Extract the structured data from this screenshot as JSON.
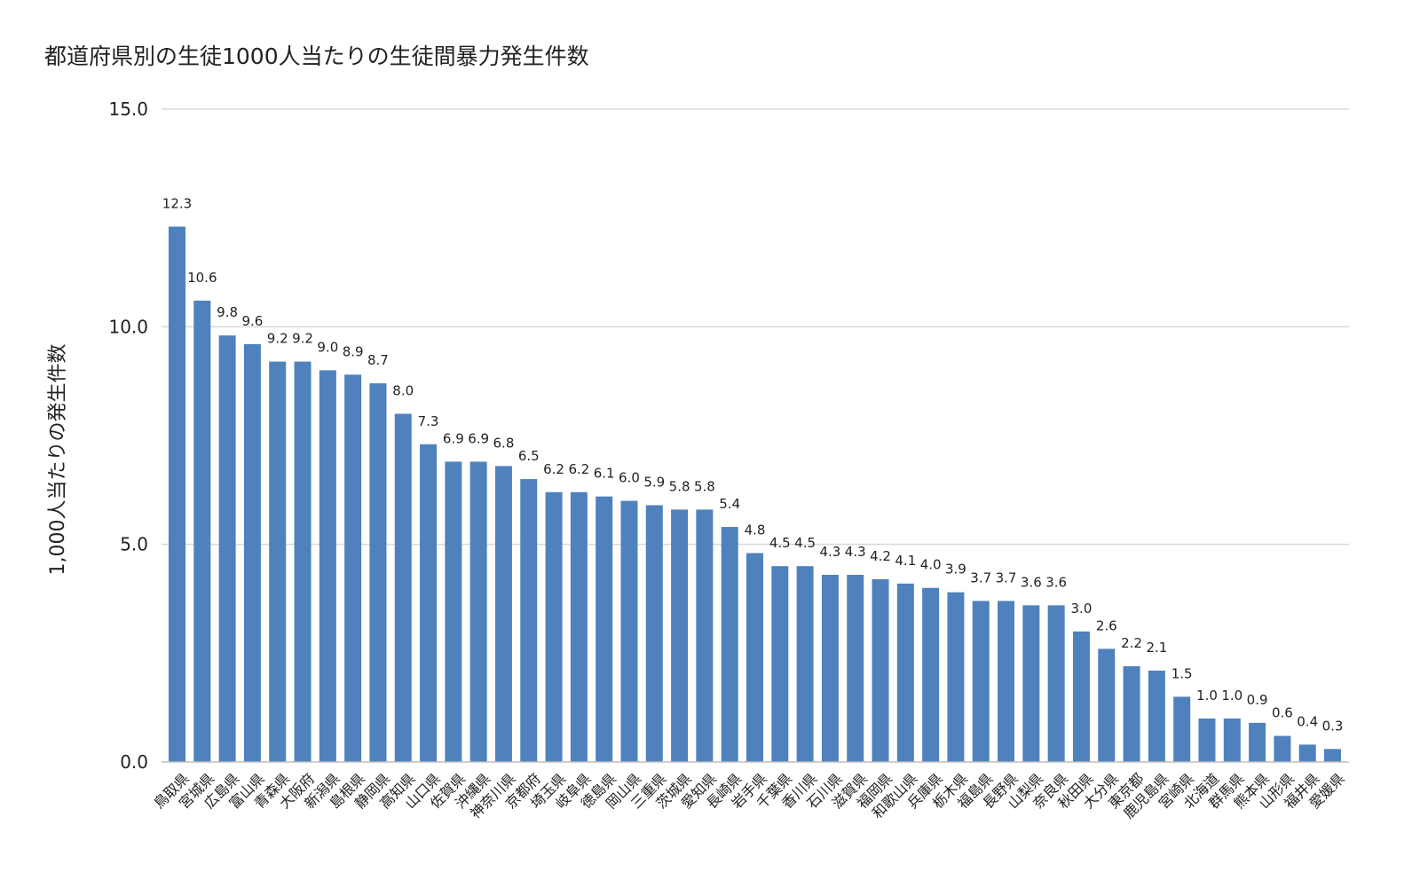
{
  "chart_data": {
    "type": "bar",
    "title": "都道府県別の生徒1000人当たりの生徒間暴力発生件数",
    "xlabel": "",
    "ylabel": "1,000人当たりの発生件数",
    "ylim": [
      0,
      15
    ],
    "yticks": [
      "0.0",
      "5.0",
      "10.0",
      "15.0"
    ],
    "ytick_values": [
      0,
      5,
      10,
      15
    ],
    "grid": true,
    "legend": "none",
    "bar_color": "#4f81bd",
    "grid_color": "#d9d9d9",
    "categories": [
      "鳥取県",
      "宮城県",
      "広島県",
      "富山県",
      "青森県",
      "大阪府",
      "新潟県",
      "島根県",
      "静岡県",
      "高知県",
      "山口県",
      "佐賀県",
      "沖縄県",
      "神奈川県",
      "京都府",
      "埼玉県",
      "岐阜県",
      "徳島県",
      "岡山県",
      "三重県",
      "茨城県",
      "愛知県",
      "長崎県",
      "岩手県",
      "千葉県",
      "香川県",
      "石川県",
      "滋賀県",
      "福岡県",
      "和歌山県",
      "兵庫県",
      "栃木県",
      "福島県",
      "長野県",
      "山梨県",
      "奈良県",
      "秋田県",
      "大分県",
      "東京都",
      "鹿児島県",
      "宮崎県",
      "北海道",
      "群馬県",
      "熊本県",
      "山形県",
      "福井県",
      "愛媛県"
    ],
    "values": [
      12.3,
      10.6,
      9.8,
      9.6,
      9.2,
      9.2,
      9.0,
      8.9,
      8.7,
      8.0,
      7.3,
      6.9,
      6.9,
      6.8,
      6.5,
      6.2,
      6.2,
      6.1,
      6.0,
      5.9,
      5.8,
      5.8,
      5.4,
      4.8,
      4.5,
      4.5,
      4.3,
      4.3,
      4.2,
      4.1,
      4.0,
      3.9,
      3.7,
      3.7,
      3.6,
      3.6,
      3.0,
      2.6,
      2.2,
      2.1,
      1.5,
      1.0,
      1.0,
      0.9,
      0.6,
      0.4,
      0.3
    ],
    "data_labels": [
      "12.3",
      "10.6",
      "9.8",
      "9.6",
      "9.2",
      "9.2",
      "9.0",
      "8.9",
      "8.7",
      "8.0",
      "7.3",
      "6.9",
      "6.9",
      "6.8",
      "6.5",
      "6.2",
      "6.2",
      "6.1",
      "6.0",
      "5.9",
      "5.8",
      "5.8",
      "5.4",
      "4.8",
      "4.5",
      "4.5",
      "4.3",
      "4.3",
      "4.2",
      "4.1",
      "4.0",
      "3.9",
      "3.7",
      "3.7",
      "3.6",
      "3.6",
      "3.0",
      "2.6",
      "2.2",
      "2.1",
      "1.5",
      "1.0",
      "1.0",
      "0.9",
      "0.6",
      "0.4",
      "0.3"
    ]
  }
}
